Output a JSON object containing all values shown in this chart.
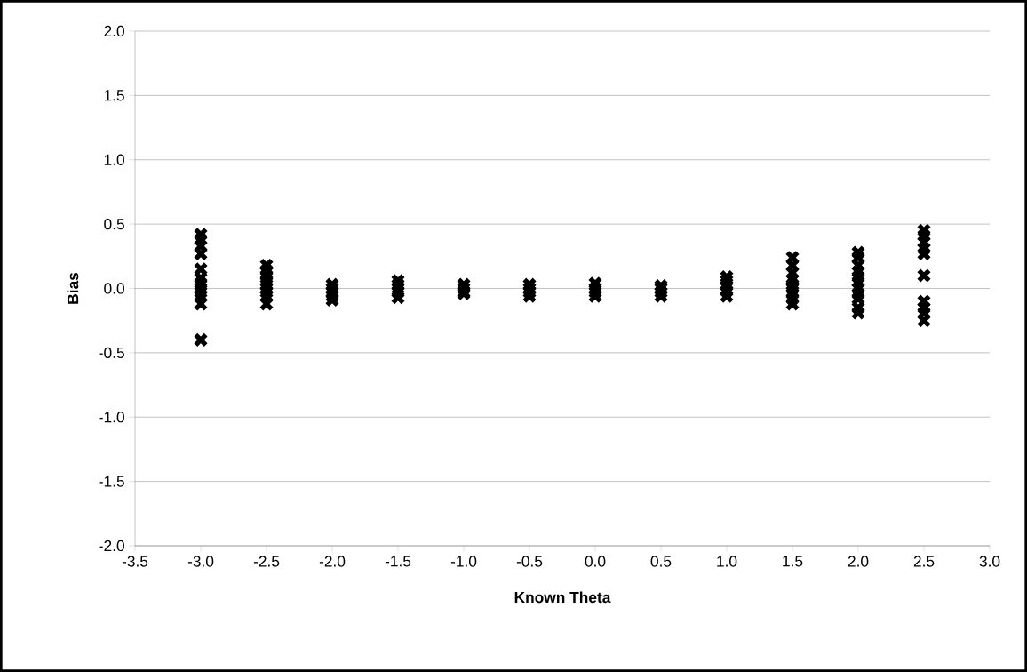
{
  "chart_data": {
    "type": "scatter",
    "xlabel": "Known Theta",
    "ylabel": "Bias",
    "x": [
      -3,
      -3,
      -3,
      -3,
      -3,
      -3,
      -3,
      -3,
      -3,
      -3,
      -3,
      -3,
      -2.5,
      -2.5,
      -2.5,
      -2.5,
      -2.5,
      -2.5,
      -2.5,
      -2.5,
      -2.5,
      -2,
      -2,
      -2,
      -2,
      -2,
      -1.5,
      -1.5,
      -1.5,
      -1.5,
      -1.5,
      -1,
      -1,
      -1,
      -1,
      -0.5,
      -0.5,
      -0.5,
      -0.5,
      0,
      0,
      0,
      0,
      0.5,
      0.5,
      0.5,
      0.5,
      1,
      1,
      1,
      1,
      1,
      1.5,
      1.5,
      1.5,
      1.5,
      1.5,
      1.5,
      1.5,
      1.5,
      1.5,
      2,
      2,
      2,
      2,
      2,
      2,
      2,
      2,
      2,
      2,
      2,
      2.5,
      2.5,
      2.5,
      2.5,
      2.5,
      2.5,
      2.5,
      2.5,
      2.5,
      2.5
    ],
    "values": [
      0.42,
      0.38,
      0.33,
      0.27,
      0.15,
      0.08,
      0.04,
      0.0,
      -0.03,
      -0.06,
      -0.12,
      -0.4,
      0.18,
      0.14,
      0.1,
      0.06,
      0.03,
      0.0,
      -0.03,
      -0.06,
      -0.12,
      0.03,
      0.0,
      -0.03,
      -0.06,
      -0.09,
      0.06,
      0.03,
      0.0,
      -0.03,
      -0.07,
      0.03,
      0.0,
      -0.03,
      -0.04,
      0.03,
      0.0,
      -0.03,
      -0.06,
      0.04,
      0.0,
      -0.03,
      -0.06,
      0.02,
      0.0,
      -0.03,
      -0.06,
      0.09,
      0.06,
      0.02,
      -0.02,
      -0.06,
      0.24,
      0.18,
      0.12,
      0.07,
      0.03,
      0.0,
      -0.04,
      -0.08,
      -0.12,
      0.28,
      0.24,
      0.18,
      0.13,
      0.09,
      0.05,
      0.0,
      -0.04,
      -0.08,
      -0.15,
      -0.19,
      0.45,
      0.41,
      0.36,
      0.31,
      0.27,
      0.1,
      -0.1,
      -0.15,
      -0.19,
      -0.25
    ],
    "color": "#000000",
    "marker": "cross",
    "grid": "y",
    "xlim": [
      -3.5,
      3.0
    ],
    "xticks": [
      {
        "value": -3.5,
        "label": "-3.5"
      },
      {
        "value": -3,
        "label": "-3.0"
      },
      {
        "value": -2.5,
        "label": "-2.5"
      },
      {
        "value": -2,
        "label": "-2.0"
      },
      {
        "value": -1.5,
        "label": "-1.5"
      },
      {
        "value": -1,
        "label": "-1.0"
      },
      {
        "value": -0.5,
        "label": "-0.5"
      },
      {
        "value": 0,
        "label": "0.0"
      },
      {
        "value": 0.5,
        "label": "0.5"
      },
      {
        "value": 1,
        "label": "1.0"
      },
      {
        "value": 1.5,
        "label": "1.5"
      },
      {
        "value": 2,
        "label": "2.0"
      },
      {
        "value": 2.5,
        "label": "2.5"
      },
      {
        "value": 3,
        "label": "3.0"
      }
    ],
    "ylim": [
      -2.0,
      2.0
    ],
    "yticks": [
      {
        "value": -2,
        "label": "-2.0"
      },
      {
        "value": -1.5,
        "label": "-1.5"
      },
      {
        "value": -1,
        "label": "-1.0"
      },
      {
        "value": -0.5,
        "label": "-0.5"
      },
      {
        "value": 0,
        "label": "0.0"
      },
      {
        "value": 0.5,
        "label": "0.5"
      },
      {
        "value": 1,
        "label": "1.0"
      },
      {
        "value": 1.5,
        "label": "1.5"
      },
      {
        "value": 2,
        "label": "2.0"
      }
    ]
  }
}
